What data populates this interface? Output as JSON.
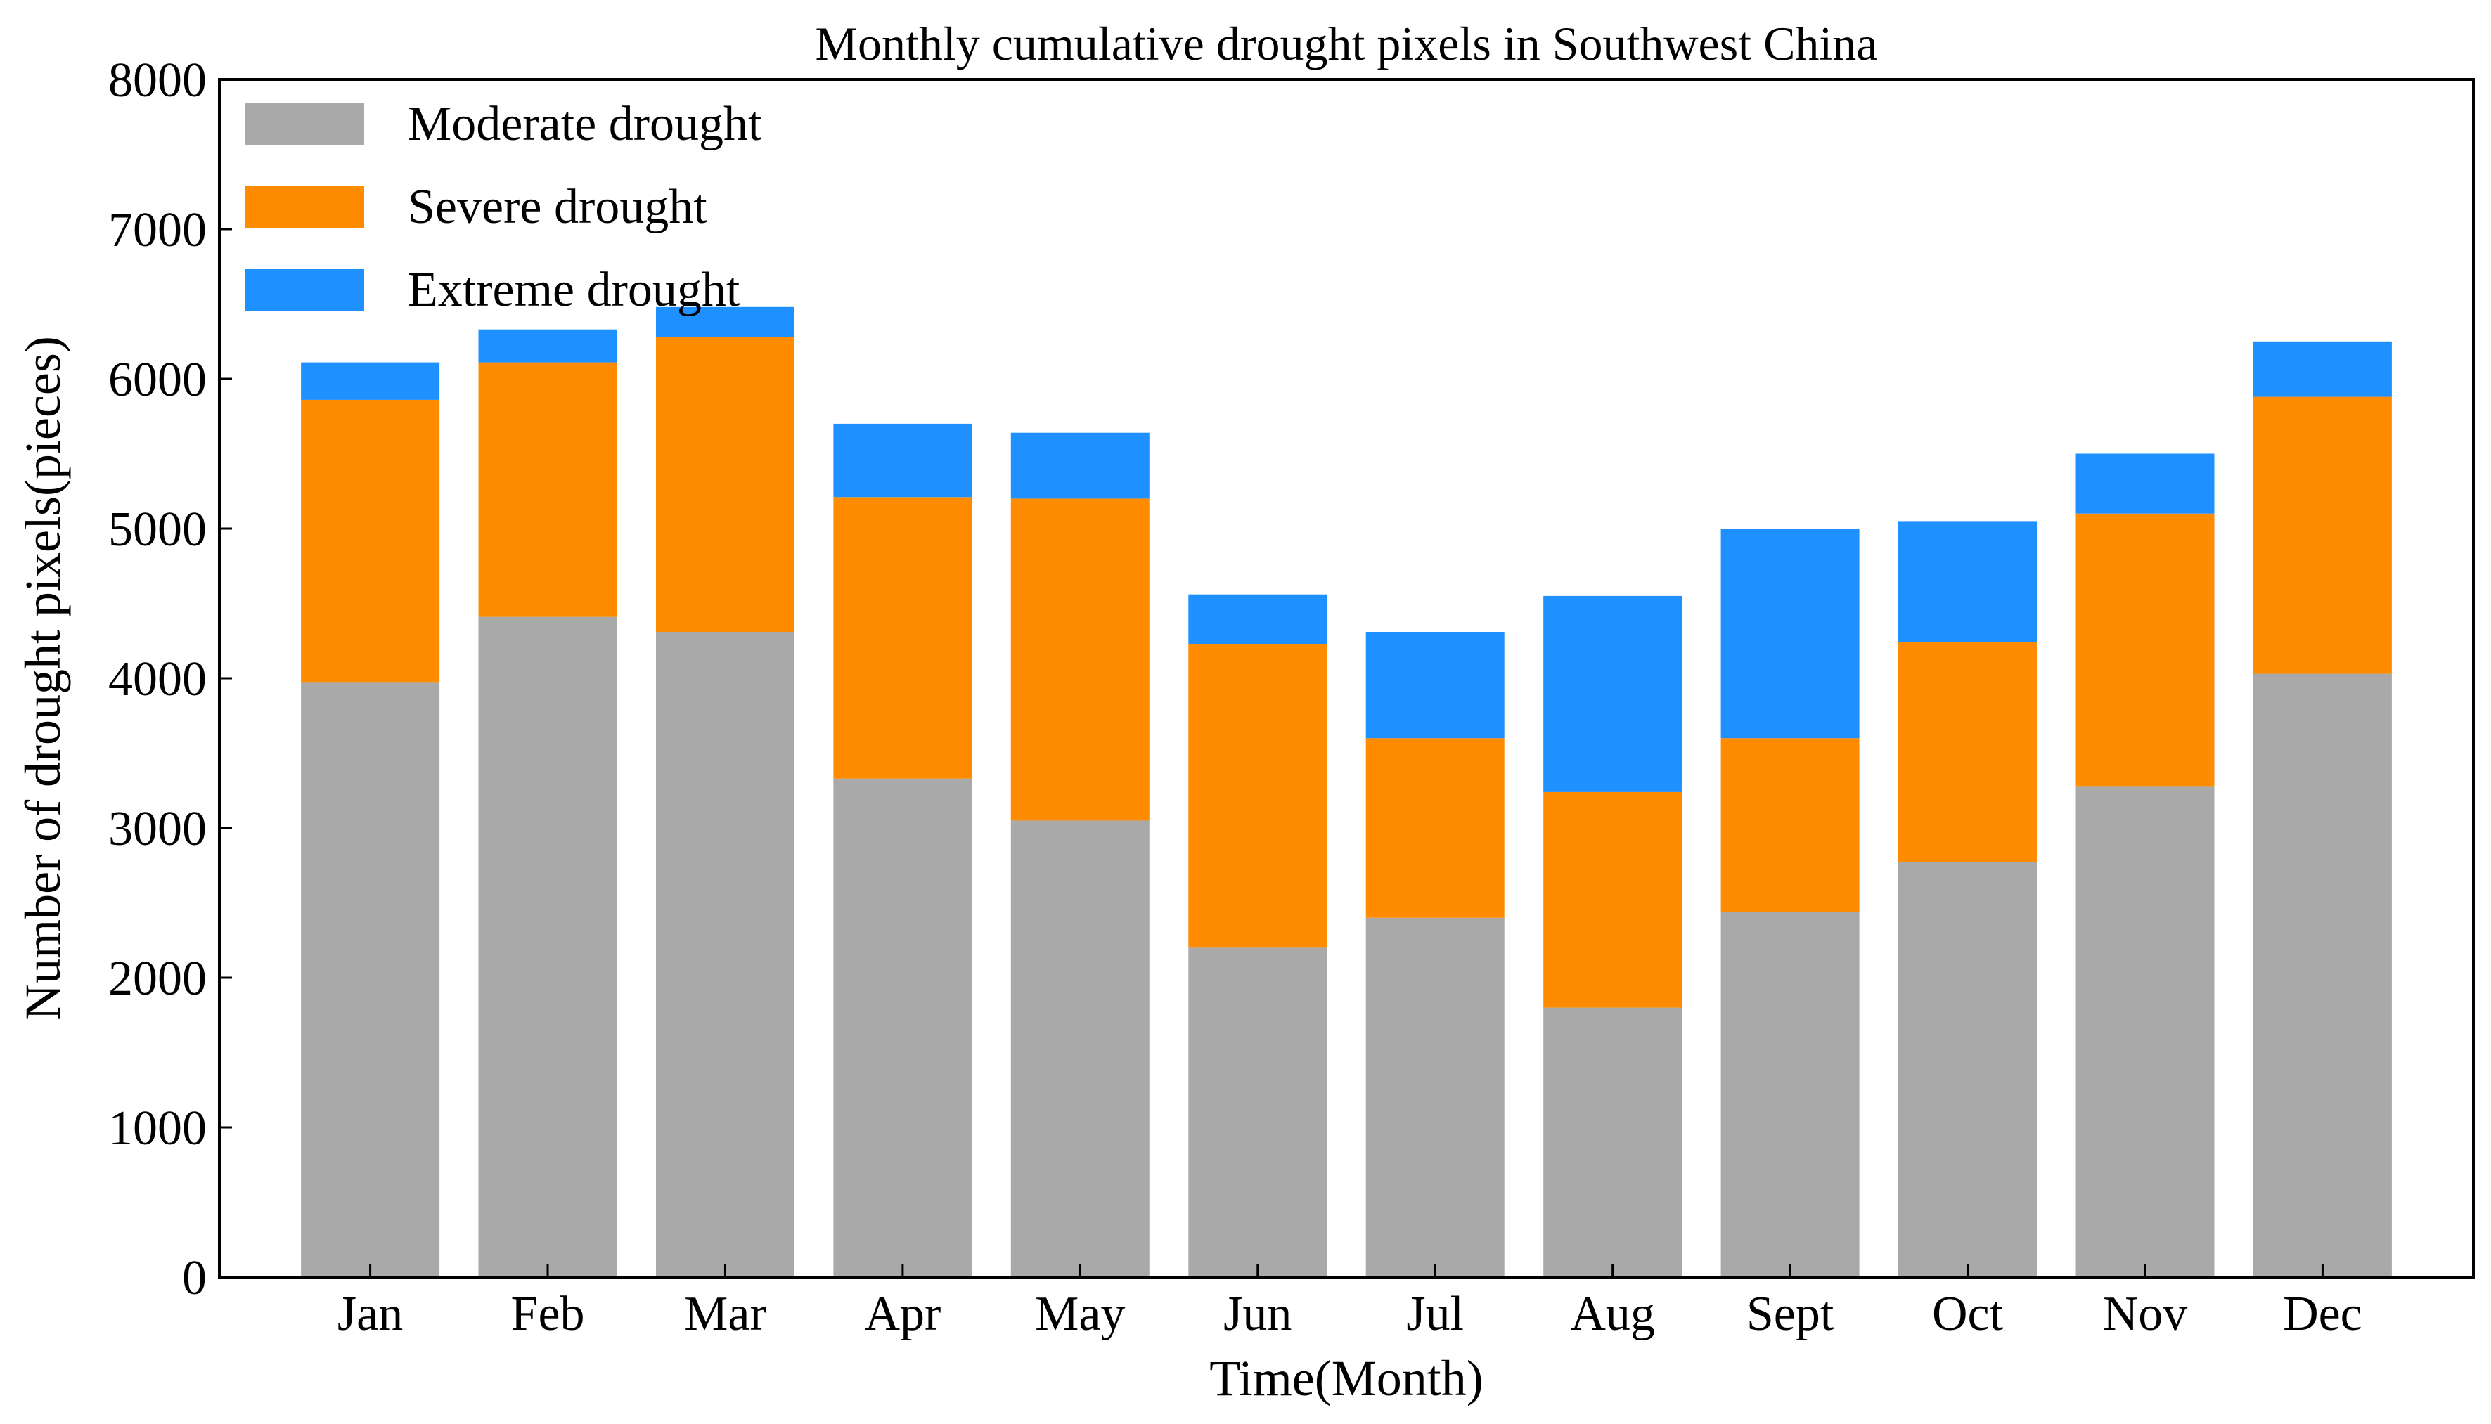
{
  "chart_data": {
    "type": "bar",
    "stacked": true,
    "title": "Monthly cumulative drought pixels in Southwest China",
    "xlabel": "Time(Month)",
    "ylabel": "Number of drought pixels(pieces)",
    "ylim": [
      0,
      8000
    ],
    "yticks": [
      "0",
      "1000",
      "2000",
      "3000",
      "4000",
      "5000",
      "6000",
      "7000",
      "8000"
    ],
    "categories": [
      "Jan",
      "Feb",
      "Mar",
      "Apr",
      "May",
      "Jun",
      "Jul",
      "Aug",
      "Sept",
      "Oct",
      "Nov",
      "Dec"
    ],
    "legend_position": "top-left",
    "series": [
      {
        "name": "Moderate drought",
        "color": "#A9A9A9",
        "values": [
          3970,
          4410,
          4310,
          3330,
          3050,
          2200,
          2400,
          1800,
          2440,
          2770,
          3280,
          4030
        ]
      },
      {
        "name": "Severe drought",
        "color": "#FF8C00",
        "values": [
          1890,
          1700,
          1970,
          1880,
          2150,
          2030,
          1200,
          1440,
          1160,
          1470,
          1820,
          1850
        ]
      },
      {
        "name": "Extreme drought",
        "color": "#1E90FF",
        "values": [
          250,
          220,
          200,
          490,
          440,
          330,
          710,
          1310,
          1400,
          810,
          400,
          370
        ]
      }
    ]
  }
}
